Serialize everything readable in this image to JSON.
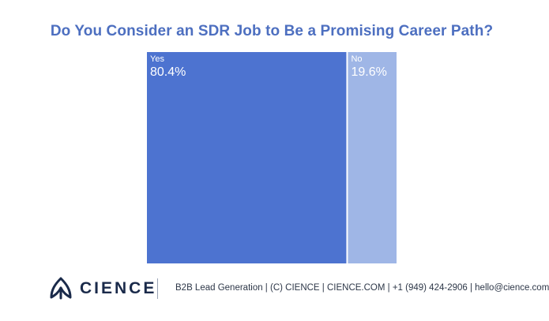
{
  "chart_data": {
    "type": "treemap",
    "title": "Do You Consider an SDR Job to Be a Promising Career Path?",
    "categories": [
      "Yes",
      "No"
    ],
    "values": [
      80.4,
      19.6
    ],
    "labels": [
      "80.4%",
      "19.6%"
    ],
    "colors": [
      "#4d73d0",
      "#9fb6e6"
    ]
  },
  "brand": {
    "logo_text": "CIENCE",
    "logo_color": "#1a2a4a",
    "logo_icon": "cience-leaf-icon"
  },
  "footer": {
    "text": "B2B Lead Generation | (C) CIENCE | CIENCE.COM | +1 (949) 424-2906 | hello@cience.com"
  }
}
